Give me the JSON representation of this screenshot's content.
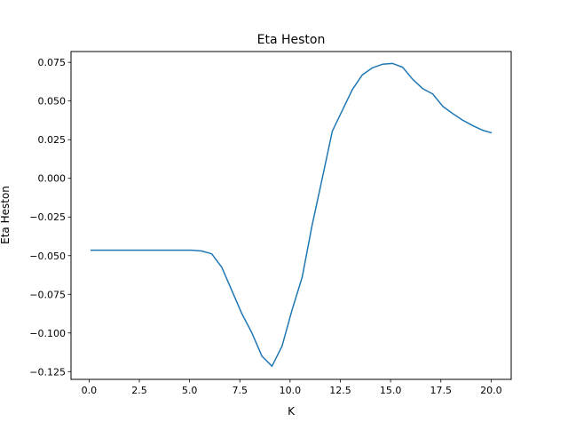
{
  "chart_data": {
    "type": "line",
    "title": "Eta Heston",
    "xlabel": "K",
    "ylabel": "Eta Heston",
    "xlim": [
      -0.9,
      21.0
    ],
    "ylim": [
      -0.13,
      0.082
    ],
    "xticks": [
      0.0,
      2.5,
      5.0,
      7.5,
      10.0,
      12.5,
      15.0,
      17.5,
      20.0
    ],
    "xtick_labels": [
      "0.0",
      "2.5",
      "5.0",
      "7.5",
      "10.0",
      "12.5",
      "15.0",
      "17.5",
      "20.0"
    ],
    "yticks": [
      0.075,
      0.05,
      0.025,
      0.0,
      -0.025,
      -0.05,
      -0.075,
      -0.1,
      -0.125
    ],
    "ytick_labels": [
      "0.075",
      "0.050",
      "0.025",
      "0.000",
      "−0.025",
      "−0.050",
      "−0.075",
      "−0.100",
      "−0.125"
    ],
    "grid": false,
    "series": [
      {
        "color": "#1f77b4",
        "x": [
          0.1,
          0.6,
          1.1,
          1.6,
          2.1,
          2.6,
          3.1,
          3.6,
          4.1,
          4.6,
          5.1,
          5.6,
          6.1,
          6.6,
          7.1,
          7.6,
          8.1,
          8.6,
          9.1,
          9.6,
          10.1,
          10.6,
          11.1,
          11.6,
          12.1,
          12.6,
          13.1,
          13.6,
          14.1,
          14.6,
          15.1,
          15.6,
          16.1,
          16.6,
          17.1,
          17.6,
          18.1,
          18.6,
          19.1,
          19.6,
          20.0
        ],
        "y": [
          -0.0465,
          -0.0465,
          -0.0465,
          -0.0465,
          -0.0465,
          -0.0465,
          -0.0465,
          -0.0465,
          -0.0465,
          -0.0465,
          -0.0465,
          -0.047,
          -0.0488,
          -0.0575,
          -0.0725,
          -0.0875,
          -0.1,
          -0.115,
          -0.1215,
          -0.1085,
          -0.085,
          -0.064,
          -0.03,
          0.0,
          0.0305,
          0.044,
          0.0575,
          0.067,
          0.0715,
          0.0738,
          0.0743,
          0.0718,
          0.064,
          0.058,
          0.0545,
          0.0465,
          0.0418,
          0.0375,
          0.034,
          0.031,
          0.0295
        ]
      }
    ]
  }
}
